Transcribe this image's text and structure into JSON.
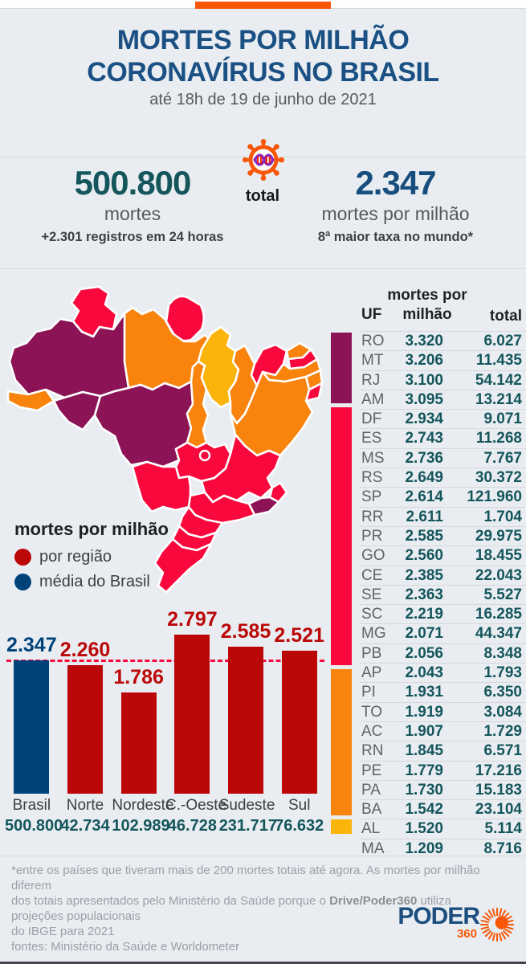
{
  "colors": {
    "background": "#e9edf1",
    "accent_orange": "#f85708",
    "title_blue": "#1a5083",
    "teal": "#14565c",
    "stat_blue": "#174e7e",
    "bar_red": "#bb0708",
    "brand_blue": "#00437a",
    "map_purple": "#8c1356",
    "map_pink": "#f8083c",
    "map_orange": "#f8830d",
    "map_yellow": "#fbb40b"
  },
  "header": {
    "title_line1": "MORTES POR MILHÃO",
    "title_line2": "CORONAVÍRUS NO BRASIL",
    "subtitle": "até 18h de 19 de junho de 2021"
  },
  "stats": {
    "deaths_value": "500.800",
    "deaths_label": "mortes",
    "deaths_note": "+2.301 registros em 24 horas",
    "icon_label": "total",
    "rate_value": "2.347",
    "rate_label": "mortes por milhão",
    "rate_note": "8ª maior taxa no mundo*"
  },
  "legend": {
    "title": "mortes por milhão",
    "items": [
      {
        "label": "por região",
        "color": "#bb0708"
      },
      {
        "label": "média do Brasil",
        "color": "#00437a"
      }
    ]
  },
  "chart_data": {
    "type": "bar",
    "title": "mortes por milhão",
    "categories": [
      "Brasil",
      "Norte",
      "Nordeste",
      "C.-Oeste",
      "Sudeste",
      "Sul"
    ],
    "values": [
      2347,
      2260,
      1786,
      2797,
      2585,
      2521
    ],
    "value_labels": [
      "2.347",
      "2.260",
      "1.786",
      "2.797",
      "2.585",
      "2.521"
    ],
    "totals": [
      "500.800",
      "42.734",
      "102.989",
      "46.728",
      "231.717",
      "76.632"
    ],
    "bar_colors": [
      "#00437a",
      "#bb0708",
      "#bb0708",
      "#bb0708",
      "#bb0708",
      "#bb0708"
    ],
    "reference_line": {
      "value": 2347,
      "style": "dashed",
      "color": "#f8083c"
    },
    "ylim": [
      0,
      2900
    ],
    "legend_position": "left"
  },
  "table": {
    "headers": {
      "uf": "UF",
      "per_million_line1": "mortes por",
      "per_million_line2": "milhão",
      "total": "total"
    },
    "groups": {
      "purple": "#8c1356",
      "pink": "#f8083c",
      "orange": "#f8830d",
      "yellow": "#fbb40b"
    },
    "rows": [
      {
        "uf": "RO",
        "per_million": "3.320",
        "total": "6.027",
        "group": "purple"
      },
      {
        "uf": "MT",
        "per_million": "3.206",
        "total": "11.435",
        "group": "purple"
      },
      {
        "uf": "RJ",
        "per_million": "3.100",
        "total": "54.142",
        "group": "purple"
      },
      {
        "uf": "AM",
        "per_million": "3.095",
        "total": "13.214",
        "group": "purple"
      },
      {
        "uf": "DF",
        "per_million": "2.934",
        "total": "9.071",
        "group": "pink"
      },
      {
        "uf": "ES",
        "per_million": "2.743",
        "total": "11.268",
        "group": "pink"
      },
      {
        "uf": "MS",
        "per_million": "2.736",
        "total": "7.767",
        "group": "pink"
      },
      {
        "uf": "RS",
        "per_million": "2.649",
        "total": "30.372",
        "group": "pink"
      },
      {
        "uf": "SP",
        "per_million": "2.614",
        "total": "121.960",
        "group": "pink"
      },
      {
        "uf": "RR",
        "per_million": "2.611",
        "total": "1.704",
        "group": "pink"
      },
      {
        "uf": "PR",
        "per_million": "2.585",
        "total": "29.975",
        "group": "pink"
      },
      {
        "uf": "GO",
        "per_million": "2.560",
        "total": "18.455",
        "group": "pink"
      },
      {
        "uf": "CE",
        "per_million": "2.385",
        "total": "22.043",
        "group": "pink"
      },
      {
        "uf": "SE",
        "per_million": "2.363",
        "total": "5.527",
        "group": "pink"
      },
      {
        "uf": "SC",
        "per_million": "2.219",
        "total": "16.285",
        "group": "pink"
      },
      {
        "uf": "MG",
        "per_million": "2.071",
        "total": "44.347",
        "group": "pink"
      },
      {
        "uf": "PB",
        "per_million": "2.056",
        "total": "8.348",
        "group": "pink"
      },
      {
        "uf": "AP",
        "per_million": "2.043",
        "total": "1.793",
        "group": "pink"
      },
      {
        "uf": "PI",
        "per_million": "1.931",
        "total": "6.350",
        "group": "orange"
      },
      {
        "uf": "TO",
        "per_million": "1.919",
        "total": "3.084",
        "group": "orange"
      },
      {
        "uf": "AC",
        "per_million": "1.907",
        "total": "1.729",
        "group": "orange"
      },
      {
        "uf": "RN",
        "per_million": "1.845",
        "total": "6.571",
        "group": "orange"
      },
      {
        "uf": "PE",
        "per_million": "1.779",
        "total": "17.216",
        "group": "orange"
      },
      {
        "uf": "PA",
        "per_million": "1.730",
        "total": "15.183",
        "group": "orange"
      },
      {
        "uf": "BA",
        "per_million": "1.542",
        "total": "23.104",
        "group": "orange"
      },
      {
        "uf": "AL",
        "per_million": "1.520",
        "total": "5.114",
        "group": "orange"
      },
      {
        "uf": "MA",
        "per_million": "1.209",
        "total": "8.716",
        "group": "yellow"
      }
    ]
  },
  "footer": {
    "note_line1": "*entre os países que tiveram mais de 200 mortes totais até agora. As mortes por milhão diferem",
    "note_line2_pre": "dos totais apresentados pelo Ministério da Saúde porque o ",
    "note_line2_bold": "Drive/Poder360",
    "note_line2_post": " utiliza projeções populacionais",
    "note_line3": "do IBGE para 2021",
    "sources": "fontes: Ministério da Saúde e Worldometer"
  },
  "logo": {
    "name": "PODER",
    "number": "360"
  }
}
